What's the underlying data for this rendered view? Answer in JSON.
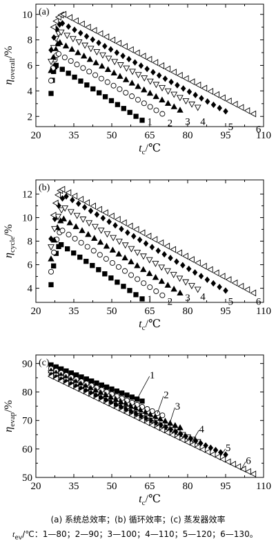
{
  "chart_data": [
    {
      "type": "scatter",
      "panel_label": "(a)",
      "ylabel": {
        "symbol": "η",
        "sub": "overall",
        "unit": "/%"
      },
      "xlabel": {
        "symbol": "t",
        "sub": "c",
        "unit": "/℃"
      },
      "xlim": [
        20,
        110
      ],
      "ylim": [
        1.2,
        10.8
      ],
      "x_ticks": [
        20,
        35,
        50,
        65,
        80,
        95,
        110
      ],
      "y_ticks": [
        2,
        4,
        6,
        8,
        10
      ],
      "series": [
        {
          "name": "1",
          "marker": "square-filled",
          "x_start": 26,
          "x_end": 62,
          "peak_x": 28,
          "y_start": 3.8,
          "y_peak": 6.0,
          "y_end": 1.7,
          "label_pos": [
            65,
            1.6
          ]
        },
        {
          "name": "2",
          "marker": "circle-open",
          "x_start": 26,
          "x_end": 70,
          "peak_x": 29,
          "y_start": 4.8,
          "y_peak": 6.9,
          "y_end": 2.2,
          "label_pos": [
            73,
            1.5
          ]
        },
        {
          "name": "3",
          "marker": "triangle-filled",
          "x_start": 26,
          "x_end": 77,
          "peak_x": 29.5,
          "y_start": 5.6,
          "y_peak": 7.8,
          "y_end": 2.5,
          "label_pos": [
            80,
            1.6
          ]
        },
        {
          "name": "4",
          "marker": "triangle-down-open",
          "x_start": 26,
          "x_end": 84,
          "peak_x": 30,
          "y_start": 6.3,
          "y_peak": 8.6,
          "y_end": 2.7,
          "label_pos": [
            86,
            1.6
          ]
        },
        {
          "name": "5",
          "marker": "diamond-filled",
          "x_start": 26,
          "x_end": 95,
          "peak_x": 30.5,
          "y_start": 7.2,
          "y_peak": 9.3,
          "y_end": 2.4,
          "label_pos": [
            97,
            1.2
          ]
        },
        {
          "name": "6",
          "marker": "triangle-left-open",
          "x_start": 27,
          "x_end": 106,
          "peak_x": 31,
          "y_start": 9.0,
          "y_peak": 10.0,
          "y_end": 2.2,
          "label_pos": [
            108,
            1.0
          ]
        }
      ]
    },
    {
      "type": "scatter",
      "panel_label": "(b)",
      "ylabel": {
        "symbol": "η",
        "sub": "cycle",
        "unit": "/%"
      },
      "xlabel": {
        "symbol": "t",
        "sub": "c",
        "unit": "/℃"
      },
      "xlim": [
        20,
        110
      ],
      "ylim": [
        2.8,
        13.2
      ],
      "x_ticks": [
        20,
        35,
        50,
        65,
        80,
        95,
        110
      ],
      "y_ticks": [
        4,
        6,
        8,
        10,
        12
      ],
      "series": [
        {
          "name": "1",
          "marker": "square-filled",
          "x_start": 26,
          "x_end": 62,
          "peak_x": 30,
          "y_start": 4.3,
          "y_peak": 7.7,
          "y_end": 3.1,
          "label_pos": [
            65,
            3.1
          ]
        },
        {
          "name": "2",
          "marker": "circle-open",
          "x_start": 26,
          "x_end": 70,
          "peak_x": 30.5,
          "y_start": 5.4,
          "y_peak": 8.9,
          "y_end": 3.4,
          "label_pos": [
            73,
            2.9
          ]
        },
        {
          "name": "3",
          "marker": "triangle-filled",
          "x_start": 26,
          "x_end": 77,
          "peak_x": 31,
          "y_start": 6.5,
          "y_peak": 9.9,
          "y_end": 3.6,
          "label_pos": [
            80,
            3.2
          ]
        },
        {
          "name": "4",
          "marker": "triangle-down-open",
          "x_start": 26,
          "x_end": 84,
          "peak_x": 31.5,
          "y_start": 7.5,
          "y_peak": 10.8,
          "y_end": 3.9,
          "label_pos": [
            86,
            3.3
          ]
        },
        {
          "name": "5",
          "marker": "diamond-filled",
          "x_start": 26,
          "x_end": 95,
          "peak_x": 32,
          "y_start": 8.2,
          "y_peak": 11.8,
          "y_end": 3.8,
          "label_pos": [
            97,
            2.9
          ]
        },
        {
          "name": "6",
          "marker": "triangle-left-open",
          "x_start": 27,
          "x_end": 106,
          "peak_x": 30.5,
          "y_start": 10.2,
          "y_peak": 12.4,
          "y_end": 3.6,
          "label_pos": [
            108,
            2.9
          ]
        }
      ]
    },
    {
      "type": "scatter",
      "panel_label": "(c)",
      "ylabel": {
        "symbol": "η",
        "sub": "evap",
        "unit": "/%"
      },
      "xlabel": {
        "symbol": "t",
        "sub": "c",
        "unit": "/℃"
      },
      "xlim": [
        20,
        110
      ],
      "ylim": [
        50,
        93
      ],
      "x_ticks": [
        20,
        35,
        50,
        65,
        80,
        95,
        110
      ],
      "y_ticks": [
        50,
        60,
        70,
        80,
        90
      ],
      "series": [
        {
          "name": "1",
          "marker": "square-filled",
          "x_start": 26,
          "x_end": 62,
          "y_start": 89.5,
          "y_end": 76.8,
          "label_pos": [
            66,
            86
          ],
          "leader_to": [
            60,
            77.5
          ]
        },
        {
          "name": "2",
          "marker": "circle-open",
          "x_start": 26,
          "x_end": 70,
          "y_start": 88.2,
          "y_end": 71.8,
          "label_pos": [
            71.5,
            79
          ],
          "leader_to": [
            68,
            72.5
          ]
        },
        {
          "name": "3",
          "marker": "triangle-filled",
          "x_start": 26,
          "x_end": 77,
          "y_start": 87.5,
          "y_end": 67.5,
          "label_pos": [
            76,
            75
          ],
          "leader_to": [
            73,
            69.2
          ]
        },
        {
          "name": "4",
          "marker": "triangle-down-open",
          "x_start": 26,
          "x_end": 84,
          "y_start": 86.6,
          "y_end": 62.5,
          "label_pos": [
            85.5,
            67
          ],
          "leader_to": [
            82,
            62.9
          ]
        },
        {
          "name": "5",
          "marker": "diamond-filled",
          "x_start": 26,
          "x_end": 95,
          "y_start": 86,
          "y_end": 58,
          "label_pos": [
            96,
            60.5
          ],
          "leader_to": [
            92.5,
            56.8
          ]
        },
        {
          "name": "6",
          "marker": "triangle-left-open",
          "x_start": 26,
          "x_end": 106,
          "y_start": 85.5,
          "y_end": 51.2,
          "label_pos": [
            104,
            56
          ],
          "leader_to": [
            101,
            52.5
          ]
        }
      ]
    }
  ],
  "caption_line1": "(a)  系统总效率；(b)  循环效率；(c)  蒸发器效率",
  "caption_line2": {
    "symbol": "t",
    "sub": "ev",
    "rest": "/℃：1—80；2—90；3—100；4—110；5—120；6—130。"
  }
}
